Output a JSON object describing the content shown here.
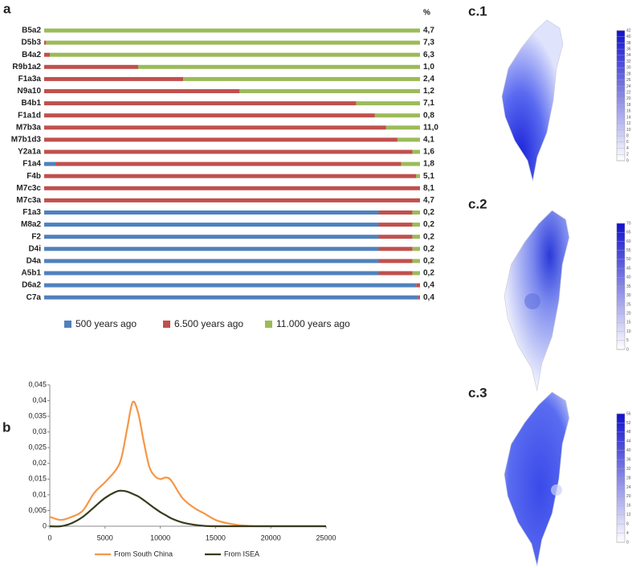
{
  "chart_data": [
    {
      "type": "stacked-hbar",
      "panel": "a",
      "right_header": "%",
      "categories": [
        "B5a2",
        "D5b3",
        "B4a2",
        "R9b1a2",
        "F1a3a",
        "N9a10",
        "B4b1",
        "F1a1d",
        "M7b3a",
        "M7b1d3",
        "Y2a1a",
        "F1a4",
        "F4b",
        "M7c3c",
        "M7c3a",
        "F1a3",
        "M8a2",
        "F2",
        "D4i",
        "D4a",
        "A5b1",
        "D6a2",
        "C7a"
      ],
      "xlim": [
        0,
        100
      ],
      "series": [
        {
          "name": "500 years ago",
          "color": "#4f81bd",
          "values": [
            0,
            0,
            0,
            0,
            0,
            0,
            0,
            0,
            0,
            0,
            0,
            3,
            0,
            0,
            0,
            89,
            89,
            89,
            89,
            89,
            89,
            99,
            99.5
          ]
        },
        {
          "name": "6.500 years ago",
          "color": "#c0504d",
          "values": [
            0,
            0.5,
            1.5,
            25,
            37,
            52,
            83,
            88,
            91,
            94,
            98,
            92,
            99,
            100,
            100,
            9,
            9,
            9,
            9,
            9,
            9,
            1,
            0.5
          ]
        },
        {
          "name": "11.000 years ago",
          "color": "#9bbb59",
          "values": [
            100,
            99.5,
            98.5,
            75,
            63,
            48,
            17,
            12,
            9,
            6,
            2,
            5,
            1,
            0,
            0,
            2,
            2,
            2,
            2,
            2,
            2,
            0,
            0
          ]
        }
      ],
      "shares": [
        4.7,
        7.3,
        6.3,
        1.0,
        2.4,
        1.2,
        7.1,
        0.8,
        11.0,
        4.1,
        1.6,
        1.8,
        5.1,
        8.1,
        4.7,
        0.2,
        0.2,
        0.2,
        0.2,
        0.2,
        0.2,
        0.4,
        0.4
      ],
      "share_labels": [
        "4,7",
        "7,3",
        "6,3",
        "1,0",
        "2,4",
        "1,2",
        "7,1",
        "0,8",
        "11,0",
        "4,1",
        "1,6",
        "1,8",
        "5,1",
        "8,1",
        "4,7",
        "0,2",
        "0,2",
        "0,2",
        "0,2",
        "0,2",
        "0,2",
        "0,4",
        "0,4"
      ]
    },
    {
      "type": "line",
      "panel": "b",
      "x": [
        0,
        1000,
        2000,
        3000,
        4000,
        5000,
        6000,
        6500,
        7000,
        7500,
        8000,
        8500,
        9000,
        9500,
        10000,
        10500,
        11000,
        12000,
        13000,
        14000,
        15000,
        16000,
        17000,
        18000,
        19000,
        20000,
        25000
      ],
      "series": [
        {
          "name": "From South China",
          "color": "#f79646",
          "values": [
            0.003,
            0.002,
            0.003,
            0.005,
            0.0105,
            0.014,
            0.018,
            0.022,
            0.031,
            0.0395,
            0.036,
            0.027,
            0.019,
            0.016,
            0.015,
            0.0155,
            0.0145,
            0.009,
            0.006,
            0.004,
            0.002,
            0.001,
            0.0004,
            0.0001,
            0,
            0,
            0
          ]
        },
        {
          "name": "From ISEA",
          "color": "#3a3a1e",
          "values": [
            0,
            0,
            0.001,
            0.003,
            0.006,
            0.009,
            0.011,
            0.0113,
            0.011,
            0.0103,
            0.0095,
            0.0083,
            0.007,
            0.0057,
            0.0045,
            0.0035,
            0.0025,
            0.0012,
            0.0005,
            0.0001,
            0,
            0,
            0,
            0,
            0,
            0,
            0
          ]
        }
      ],
      "xlim": [
        0,
        25000
      ],
      "xticks": [
        0,
        5000,
        10000,
        15000,
        20000,
        25000
      ],
      "ylim": [
        0,
        0.045
      ],
      "yticks": [
        0,
        {
          "value": 0.005,
          "label": "0,005"
        },
        {
          "value": 0.01,
          "label": "0,01"
        },
        {
          "value": 0.015,
          "label": "0,015"
        },
        {
          "value": 0.02,
          "label": "0,02"
        },
        {
          "value": 0.025,
          "label": "0,025"
        },
        {
          "value": 0.03,
          "label": "0,03"
        },
        {
          "value": 0.035,
          "label": "0,035"
        },
        {
          "value": 0.04,
          "label": "0,04"
        },
        {
          "value": 0.045,
          "label": "0,045"
        }
      ]
    }
  ],
  "maps": [
    {
      "label": "c.1",
      "scale_ticks": [
        0,
        2,
        4,
        6,
        8,
        10,
        12,
        14,
        16,
        18,
        20,
        22,
        24,
        26,
        28,
        30,
        32,
        34,
        36,
        38,
        40,
        42
      ]
    },
    {
      "label": "c.2",
      "scale_ticks": [
        0,
        5,
        10,
        15,
        20,
        25,
        30,
        35,
        40,
        45,
        50,
        55,
        60,
        65,
        70
      ]
    },
    {
      "label": "c.3",
      "scale_ticks": [
        0,
        4,
        8,
        12,
        16,
        20,
        24,
        28,
        32,
        36,
        40,
        44,
        48,
        52,
        56
      ]
    }
  ]
}
